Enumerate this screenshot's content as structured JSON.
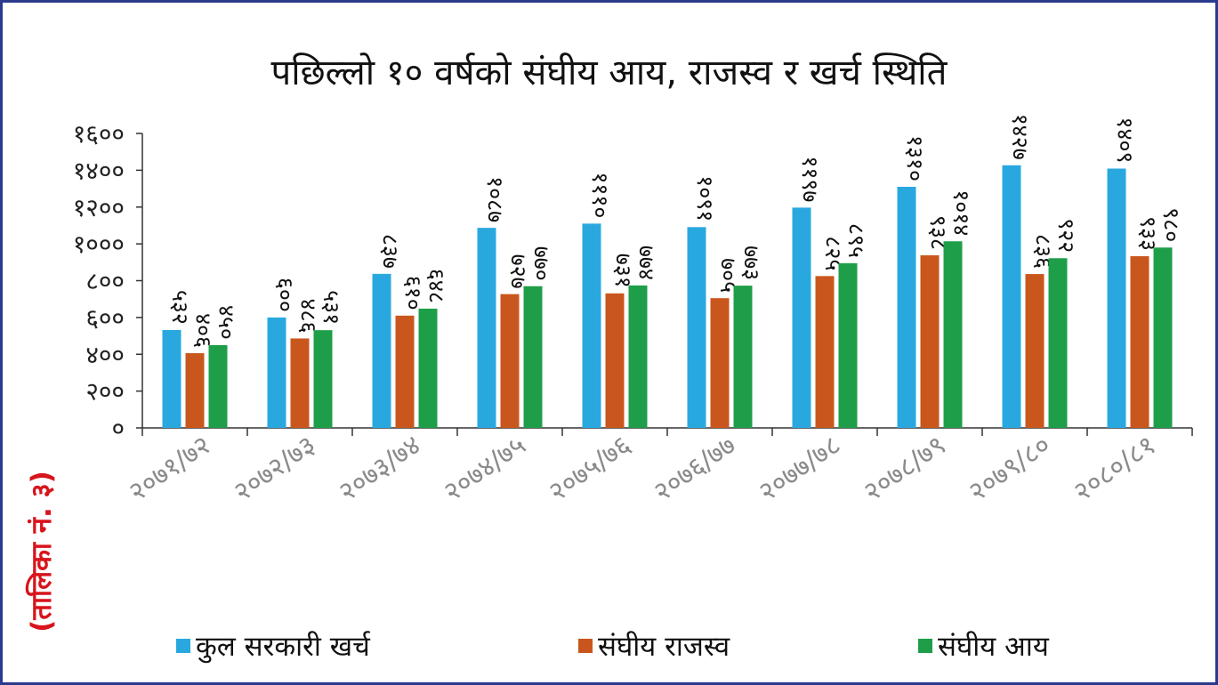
{
  "chart_data": {
    "type": "bar",
    "title": "पछिल्लो १० वर्षको संघीय आय, राजस्व र खर्च स्थिति",
    "side_label": "(तालिका नं. ३)",
    "categories": [
      "२०७१/७२",
      "२०७२/७३",
      "२०७३/७४",
      "२०७४/७५",
      "२०७५/७६",
      "२०७६/७७",
      "२०७७/७८",
      "२०७८/७९",
      "२०७९/८०",
      "२०८०/८१"
    ],
    "ylim": [
      0,
      1600
    ],
    "yticks": [
      0,
      200,
      400,
      600,
      800,
      1000,
      1200,
      1400,
      1600
    ],
    "ytick_labels": [
      "०",
      "२००",
      "४००",
      "६००",
      "८००",
      "१०००",
      "१२००",
      "१४००",
      "१६००"
    ],
    "series": [
      {
        "name": "कुल सरकारी खर्च",
        "color": "#29a8e0",
        "values": [
          532,
          600,
          837,
          1087,
          1110,
          1091,
          1197,
          1310,
          1427,
          1409
        ],
        "labels": [
          "५३२",
          "६००",
          "८३७",
          "१०८७",
          "१११०",
          "१०९१",
          "११९७",
          "१३१०",
          "१४२७",
          "१४०९"
        ]
      },
      {
        "name": "संघीय राजस्व",
        "color": "#c9571d",
        "values": [
          406,
          486,
          610,
          727,
          731,
          705,
          825,
          938,
          836,
          933
        ],
        "labels": [
          "४०६",
          "४८६",
          "६१०",
          "७२७",
          "७३१",
          "७०५",
          "८२५",
          "९३८",
          "८३६",
          "९३३"
        ]
      },
      {
        "name": "संघीय आय",
        "color": "#1e9e48",
        "values": [
          450,
          531,
          648,
          770,
          774,
          773,
          895,
          1014,
          922,
          980
        ],
        "labels": [
          "४५०",
          "५३१",
          "६४८",
          "७७०",
          "७७४",
          "७७३",
          "८९५",
          "१०१४",
          "९२२",
          "९८०"
        ]
      }
    ]
  }
}
